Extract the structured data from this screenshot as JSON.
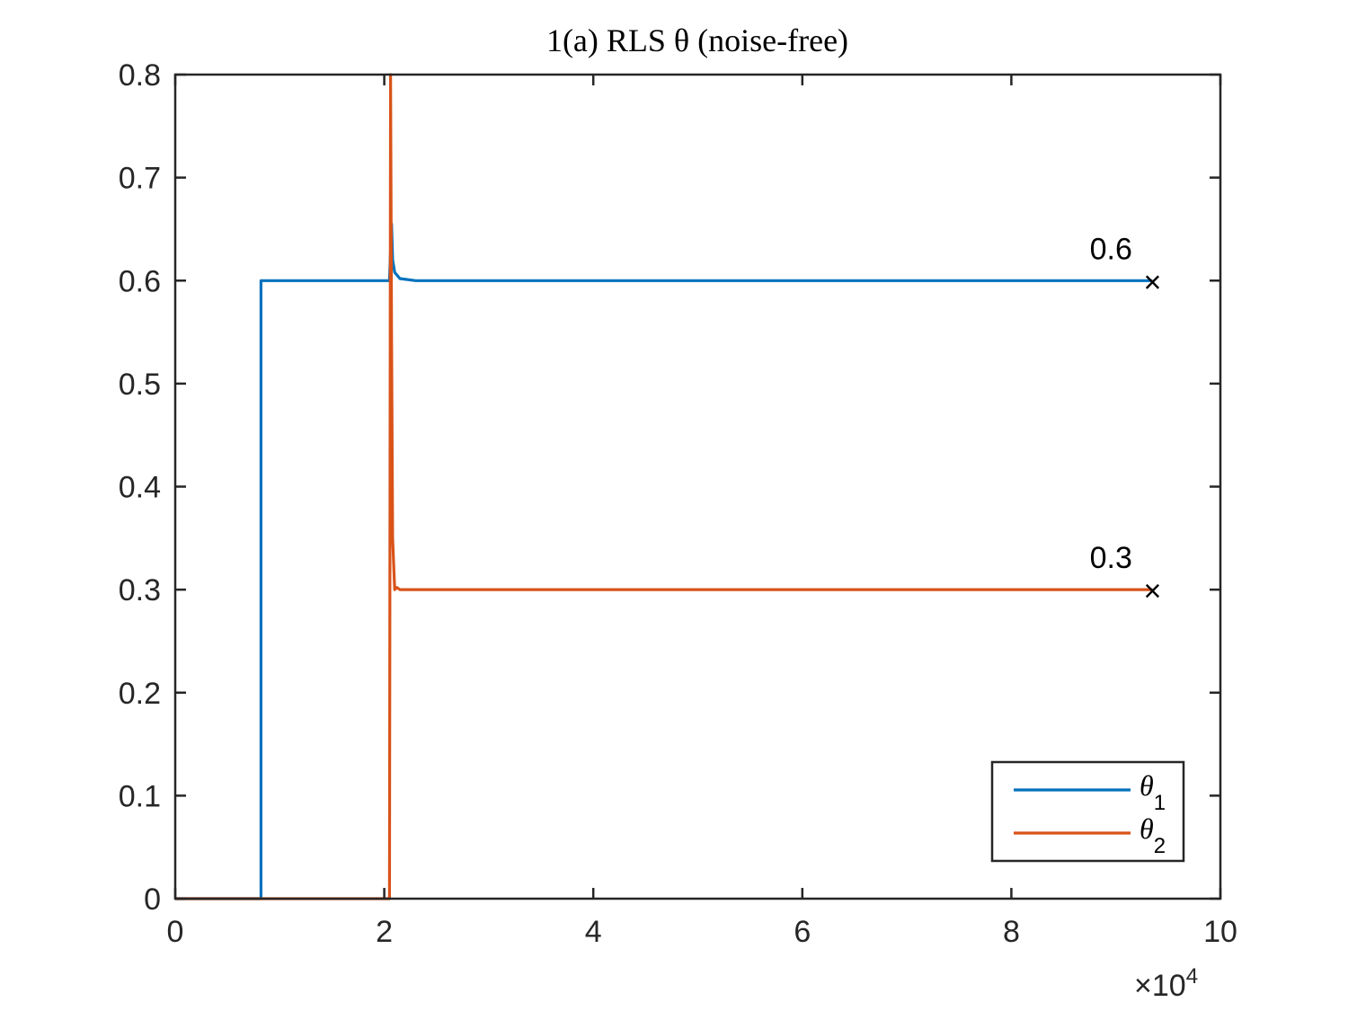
{
  "chart_data": {
    "type": "line",
    "title": "1(a) RLS θ (noise-free)",
    "xlabel": "",
    "ylabel": "",
    "xlim": [
      0,
      10
    ],
    "ylim": [
      0,
      0.8
    ],
    "x_multiplier_label": "×10",
    "x_multiplier_exponent": "4",
    "xticks": [
      0,
      2,
      4,
      6,
      8,
      10
    ],
    "xtick_labels": [
      "0",
      "2",
      "4",
      "6",
      "8",
      "10"
    ],
    "yticks": [
      0,
      0.1,
      0.2,
      0.3,
      0.4,
      0.5,
      0.6,
      0.7,
      0.8
    ],
    "ytick_labels": [
      "0",
      "0.1",
      "0.2",
      "0.3",
      "0.4",
      "0.5",
      "0.6",
      "0.7",
      "0.8"
    ],
    "grid": false,
    "legend_position": "bottom-right",
    "series": [
      {
        "name": "θ1",
        "name_base": "θ",
        "name_sub": "1",
        "color": "#0072BD",
        "x": [
          0,
          0.82,
          0.82,
          2.05,
          2.07,
          2.08,
          2.1,
          2.15,
          2.3,
          9.35
        ],
        "y": [
          0,
          0,
          0.6,
          0.6,
          0.655,
          0.62,
          0.608,
          0.602,
          0.6,
          0.6
        ]
      },
      {
        "name": "θ2",
        "name_base": "θ",
        "name_sub": "2",
        "color": "#D95319",
        "x": [
          0,
          2.05,
          2.06,
          2.07,
          2.08,
          2.1,
          2.12,
          2.15,
          2.3,
          9.35
        ],
        "y": [
          0,
          0,
          0.8,
          0.55,
          0.35,
          0.3,
          0.302,
          0.3,
          0.3,
          0.3
        ]
      }
    ],
    "markers": [
      {
        "x": 9.35,
        "y": 0.6,
        "symbol": "×"
      },
      {
        "x": 9.35,
        "y": 0.3,
        "symbol": "×"
      }
    ],
    "annotations": [
      {
        "text": "0.6",
        "x": 8.75,
        "y": 0.6
      },
      {
        "text": "0.3",
        "x": 8.75,
        "y": 0.3
      }
    ]
  }
}
